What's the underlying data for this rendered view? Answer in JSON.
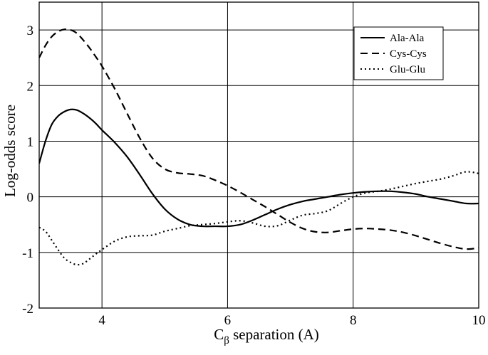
{
  "chart_data": {
    "type": "line",
    "title": "",
    "xlabel": "C",
    "xlabel_sub": "β",
    "xlabel_rest": " separation (A)",
    "ylabel": "Log-odds score",
    "xlim": [
      3,
      10
    ],
    "ylim": [
      -2,
      3.5
    ],
    "xticks": [
      "4",
      "6",
      "8",
      "10"
    ],
    "yticks": [
      "-2",
      "-1",
      "0",
      "1",
      "2",
      "3"
    ],
    "grid": true,
    "legend_position": "top-right",
    "series": [
      {
        "name": "Ala-Ala",
        "style": "solid",
        "color": "#000000",
        "x": [
          3.0,
          3.1,
          3.2,
          3.3,
          3.4,
          3.5,
          3.6,
          3.7,
          3.8,
          3.9,
          4.0,
          4.2,
          4.4,
          4.6,
          4.8,
          5.0,
          5.2,
          5.4,
          5.6,
          5.8,
          6.0,
          6.2,
          6.4,
          6.6,
          6.8,
          7.0,
          7.2,
          7.4,
          7.6,
          7.8,
          8.0,
          8.2,
          8.4,
          8.6,
          8.8,
          9.0,
          9.2,
          9.4,
          9.6,
          9.8,
          10.0
        ],
        "y": [
          0.6,
          1.0,
          1.3,
          1.45,
          1.53,
          1.57,
          1.56,
          1.5,
          1.42,
          1.32,
          1.2,
          0.98,
          0.72,
          0.4,
          0.06,
          -0.22,
          -0.4,
          -0.5,
          -0.53,
          -0.53,
          -0.53,
          -0.5,
          -0.42,
          -0.32,
          -0.22,
          -0.14,
          -0.08,
          -0.04,
          0.0,
          0.04,
          0.07,
          0.09,
          0.1,
          0.1,
          0.08,
          0.05,
          0.0,
          -0.04,
          -0.08,
          -0.12,
          -0.12
        ]
      },
      {
        "name": "Cys-Cys",
        "style": "dashed",
        "color": "#000000",
        "x": [
          3.0,
          3.1,
          3.2,
          3.3,
          3.4,
          3.5,
          3.6,
          3.7,
          3.8,
          3.9,
          4.0,
          4.2,
          4.4,
          4.6,
          4.8,
          5.0,
          5.2,
          5.4,
          5.6,
          5.8,
          6.0,
          6.2,
          6.4,
          6.6,
          6.8,
          7.0,
          7.2,
          7.4,
          7.6,
          7.8,
          8.0,
          8.2,
          8.4,
          8.6,
          8.8,
          9.0,
          9.2,
          9.4,
          9.6,
          9.8,
          10.0
        ],
        "y": [
          2.5,
          2.72,
          2.88,
          2.97,
          3.01,
          3.0,
          2.94,
          2.82,
          2.68,
          2.52,
          2.35,
          1.95,
          1.5,
          1.06,
          0.7,
          0.5,
          0.43,
          0.41,
          0.38,
          0.3,
          0.2,
          0.08,
          -0.05,
          -0.18,
          -0.32,
          -0.46,
          -0.57,
          -0.63,
          -0.64,
          -0.61,
          -0.58,
          -0.57,
          -0.58,
          -0.6,
          -0.64,
          -0.7,
          -0.77,
          -0.84,
          -0.9,
          -0.94,
          -0.92
        ]
      },
      {
        "name": "Glu-Glu",
        "style": "dotted",
        "color": "#000000",
        "x": [
          3.0,
          3.1,
          3.2,
          3.3,
          3.4,
          3.5,
          3.6,
          3.7,
          3.8,
          3.9,
          4.0,
          4.2,
          4.4,
          4.6,
          4.8,
          5.0,
          5.2,
          5.4,
          5.6,
          5.8,
          6.0,
          6.2,
          6.4,
          6.6,
          6.8,
          7.0,
          7.2,
          7.4,
          7.6,
          7.8,
          8.0,
          8.2,
          8.4,
          8.6,
          8.8,
          9.0,
          9.2,
          9.4,
          9.6,
          9.8,
          10.0
        ],
        "y": [
          -0.55,
          -0.62,
          -0.78,
          -0.95,
          -1.1,
          -1.18,
          -1.22,
          -1.2,
          -1.12,
          -1.03,
          -0.95,
          -0.8,
          -0.72,
          -0.7,
          -0.69,
          -0.62,
          -0.57,
          -0.52,
          -0.5,
          -0.48,
          -0.45,
          -0.43,
          -0.47,
          -0.53,
          -0.52,
          -0.42,
          -0.33,
          -0.3,
          -0.25,
          -0.12,
          0.0,
          0.07,
          0.1,
          0.14,
          0.19,
          0.24,
          0.28,
          0.32,
          0.38,
          0.45,
          0.42
        ]
      }
    ]
  }
}
